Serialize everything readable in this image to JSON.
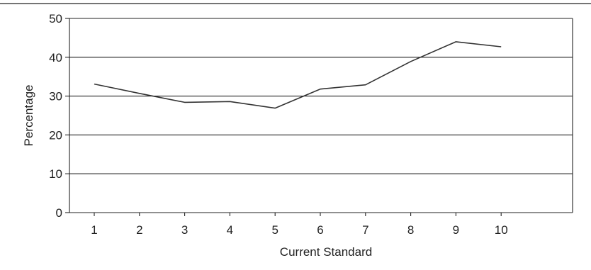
{
  "chart_data": {
    "type": "line",
    "title": "",
    "xlabel": "Current Standard",
    "ylabel": "Percentage",
    "categories": [
      "1",
      "2",
      "3",
      "4",
      "5",
      "6",
      "7",
      "8",
      "9",
      "10"
    ],
    "series": [
      {
        "values": [
          33.1,
          30.7,
          28.4,
          28.6,
          26.9,
          31.8,
          32.9,
          38.9,
          44.0,
          42.7
        ]
      }
    ],
    "ylim": [
      0,
      50
    ],
    "yticks": [
      "0",
      "10",
      "20",
      "30",
      "40",
      "50"
    ],
    "grid": "horizontal",
    "legend": "none",
    "colors": {
      "line": "#333333",
      "grid": "#222222",
      "text": "#222222"
    }
  }
}
